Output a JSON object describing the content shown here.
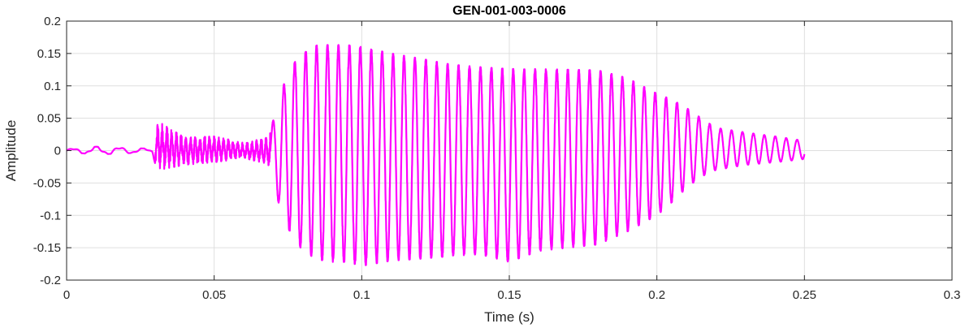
{
  "chart_data": {
    "type": "line",
    "title": "GEN-001-003-0006",
    "xlabel": "Time (s)",
    "ylabel": "Amplitude",
    "xlim": [
      0,
      0.3
    ],
    "ylim": [
      -0.2,
      0.2
    ],
    "xticks": [
      0,
      0.05,
      0.1,
      0.15,
      0.2,
      0.25,
      0.3
    ],
    "xtick_labels": [
      "0",
      "0.05",
      "0.1",
      "0.15",
      "0.2",
      "0.25",
      "0.3"
    ],
    "yticks": [
      -0.2,
      -0.15,
      -0.1,
      -0.05,
      0,
      0.05,
      0.1,
      0.15,
      0.2
    ],
    "ytick_labels": [
      "-0.2",
      "-0.15",
      "-0.1",
      "-0.05",
      "0",
      "0.05",
      "0.1",
      "0.15",
      "0.2"
    ],
    "grid": true,
    "series": [
      {
        "color": "#ff00ff",
        "x_start": 0,
        "x_end": 0.25,
        "x": [
          0,
          0.01,
          0.02,
          0.029,
          0.03,
          0.031,
          0.04,
          0.05,
          0.06,
          0.068,
          0.071,
          0.075,
          0.08,
          0.085,
          0.09,
          0.095,
          0.1,
          0.11,
          0.12,
          0.13,
          0.14,
          0.15,
          0.16,
          0.17,
          0.18,
          0.19,
          0.2,
          0.205,
          0.21,
          0.215,
          0.22,
          0.23,
          0.24,
          0.25
        ],
        "upper_envelope": [
          0.002,
          0.006,
          0.004,
          0.003,
          0.02,
          0.045,
          0.02,
          0.022,
          0.012,
          0.02,
          0.06,
          0.125,
          0.15,
          0.163,
          0.163,
          0.163,
          0.16,
          0.15,
          0.142,
          0.133,
          0.129,
          0.126,
          0.126,
          0.125,
          0.124,
          0.112,
          0.088,
          0.079,
          0.066,
          0.05,
          0.035,
          0.028,
          0.022,
          0.015
        ],
        "lower_envelope": [
          -0.002,
          -0.006,
          -0.004,
          -0.003,
          -0.02,
          -0.03,
          -0.022,
          -0.018,
          -0.012,
          -0.02,
          -0.07,
          -0.12,
          -0.155,
          -0.168,
          -0.172,
          -0.172,
          -0.178,
          -0.17,
          -0.167,
          -0.163,
          -0.16,
          -0.172,
          -0.155,
          -0.15,
          -0.145,
          -0.125,
          -0.1,
          -0.08,
          -0.058,
          -0.04,
          -0.03,
          -0.022,
          -0.018,
          -0.013
        ],
        "oscillation_period_s": 0.0037
      }
    ]
  }
}
